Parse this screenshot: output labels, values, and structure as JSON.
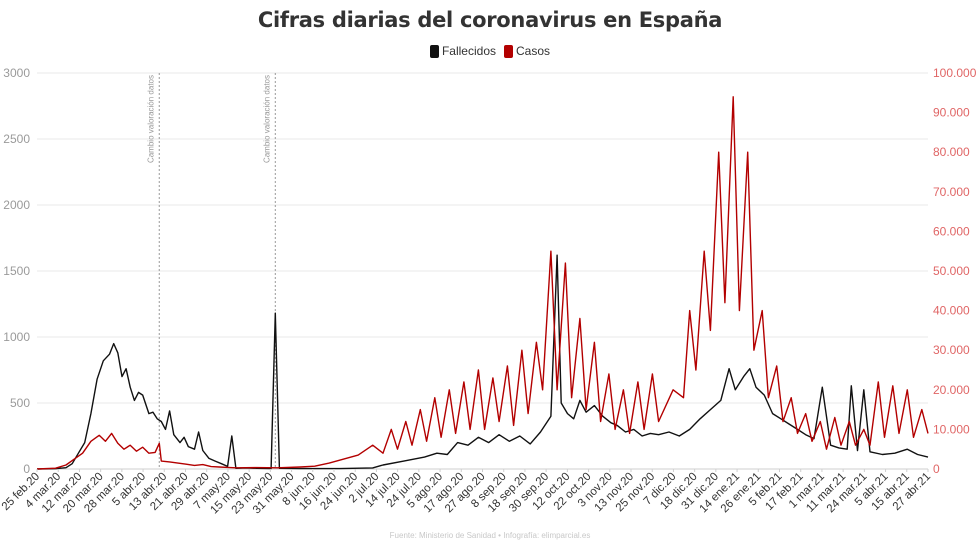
{
  "title": "Cifras diarias del coronavirus en España",
  "source": "Fuente: Ministerio de Sanidad • Infografía: elimparcial.es",
  "colors": {
    "fallecidos": "#111111",
    "casos": "#b30000",
    "grid": "#e8e8e8",
    "right_axis": "#e06666"
  },
  "chart_data": {
    "type": "line",
    "title": "Cifras diarias del coronavirus en España",
    "legend": [
      "Fallecidos",
      "Casos"
    ],
    "legend_placement": "top-center",
    "grid": true,
    "y_left": {
      "min": 0,
      "max": 3000,
      "ticks": [
        "0",
        "500",
        "1000",
        "1500",
        "2000",
        "2500",
        "3000"
      ]
    },
    "y_right": {
      "min": 0,
      "max": 100000,
      "ticks": [
        "0",
        "10.000",
        "20.000",
        "30.000",
        "40.000",
        "50.000",
        "60.000",
        "70.000",
        "80.000",
        "90.000",
        "100.000"
      ]
    },
    "x_labels": [
      "25 feb.20",
      "4 mar.20",
      "12 mar.20",
      "20 mar.20",
      "28 mar.20",
      "5 abr.20",
      "13 abr.20",
      "21 abr.20",
      "29 abr.20",
      "7 may.20",
      "15 may.20",
      "23 may.20",
      "31 may.20",
      "8 jun.20",
      "16 jun.20",
      "24 jun.20",
      "2 jul.20",
      "14 jul.20",
      "24 jul.20",
      "5 ago.20",
      "17 ago.20",
      "27 ago.20",
      "8 sep.20",
      "18 sep.20",
      "30 sep.20",
      "12 oct.20",
      "22 oct.20",
      "3 nov.20",
      "13 nov.20",
      "25 nov.20",
      "7 dic.20",
      "18 dic.20",
      "31 dic.20",
      "14 ene.21",
      "26 ene.21",
      "5 feb.21",
      "17 feb.21",
      "1 mar.21",
      "11 mar.21",
      "24 mar.21",
      "5 abr.21",
      "15 abr.21",
      "27 abr.21"
    ],
    "x_start": "2020-02-25",
    "x_end": "2021-04-30",
    "annotations": [
      {
        "date": "2020-04-24",
        "label": "Cambio valoración datos"
      },
      {
        "date": "2020-06-19",
        "label": "Cambio valoración datos"
      }
    ],
    "series": [
      {
        "name": "Fallecidos",
        "axis": "left",
        "points": [
          [
            "2020-02-25",
            0
          ],
          [
            "2020-03-05",
            2
          ],
          [
            "2020-03-10",
            10
          ],
          [
            "2020-03-13",
            40
          ],
          [
            "2020-03-16",
            120
          ],
          [
            "2020-03-19",
            200
          ],
          [
            "2020-03-22",
            420
          ],
          [
            "2020-03-25",
            680
          ],
          [
            "2020-03-28",
            820
          ],
          [
            "2020-03-31",
            870
          ],
          [
            "2020-04-02",
            950
          ],
          [
            "2020-04-04",
            880
          ],
          [
            "2020-04-06",
            700
          ],
          [
            "2020-04-08",
            760
          ],
          [
            "2020-04-10",
            620
          ],
          [
            "2020-04-12",
            520
          ],
          [
            "2020-04-14",
            580
          ],
          [
            "2020-04-16",
            560
          ],
          [
            "2020-04-19",
            420
          ],
          [
            "2020-04-21",
            430
          ],
          [
            "2020-04-23",
            380
          ],
          [
            "2020-04-25",
            360
          ],
          [
            "2020-04-27",
            300
          ],
          [
            "2020-04-29",
            440
          ],
          [
            "2020-05-01",
            260
          ],
          [
            "2020-05-04",
            200
          ],
          [
            "2020-05-06",
            240
          ],
          [
            "2020-05-08",
            170
          ],
          [
            "2020-05-11",
            150
          ],
          [
            "2020-05-13",
            280
          ],
          [
            "2020-05-15",
            140
          ],
          [
            "2020-05-18",
            80
          ],
          [
            "2020-05-21",
            60
          ],
          [
            "2020-05-24",
            40
          ],
          [
            "2020-05-27",
            20
          ],
          [
            "2020-05-29",
            250
          ],
          [
            "2020-05-31",
            5
          ],
          [
            "2020-06-05",
            8
          ],
          [
            "2020-06-10",
            5
          ],
          [
            "2020-06-17",
            3
          ],
          [
            "2020-06-19",
            1180
          ],
          [
            "2020-06-21",
            5
          ],
          [
            "2020-07-01",
            3
          ],
          [
            "2020-07-20",
            3
          ],
          [
            "2020-08-05",
            8
          ],
          [
            "2020-08-10",
            30
          ],
          [
            "2020-08-20",
            60
          ],
          [
            "2020-08-30",
            90
          ],
          [
            "2020-09-05",
            120
          ],
          [
            "2020-09-10",
            110
          ],
          [
            "2020-09-15",
            200
          ],
          [
            "2020-09-20",
            180
          ],
          [
            "2020-09-25",
            240
          ],
          [
            "2020-09-30",
            200
          ],
          [
            "2020-10-05",
            260
          ],
          [
            "2020-10-10",
            210
          ],
          [
            "2020-10-15",
            250
          ],
          [
            "2020-10-20",
            190
          ],
          [
            "2020-10-25",
            280
          ],
          [
            "2020-10-30",
            400
          ],
          [
            "2020-11-02",
            1620
          ],
          [
            "2020-11-04",
            500
          ],
          [
            "2020-11-07",
            420
          ],
          [
            "2020-11-10",
            380
          ],
          [
            "2020-11-13",
            520
          ],
          [
            "2020-11-16",
            430
          ],
          [
            "2020-11-20",
            480
          ],
          [
            "2020-11-24",
            400
          ],
          [
            "2020-11-28",
            350
          ],
          [
            "2020-12-01",
            330
          ],
          [
            "2020-12-05",
            280
          ],
          [
            "2020-12-09",
            300
          ],
          [
            "2020-12-13",
            250
          ],
          [
            "2020-12-17",
            270
          ],
          [
            "2020-12-21",
            260
          ],
          [
            "2020-12-26",
            280
          ],
          [
            "2020-12-31",
            250
          ],
          [
            "2021-01-05",
            300
          ],
          [
            "2021-01-10",
            380
          ],
          [
            "2021-01-15",
            450
          ],
          [
            "2021-01-20",
            520
          ],
          [
            "2021-01-24",
            760
          ],
          [
            "2021-01-27",
            600
          ],
          [
            "2021-01-31",
            700
          ],
          [
            "2021-02-03",
            760
          ],
          [
            "2021-02-06",
            620
          ],
          [
            "2021-02-10",
            560
          ],
          [
            "2021-02-14",
            420
          ],
          [
            "2021-02-18",
            380
          ],
          [
            "2021-02-22",
            340
          ],
          [
            "2021-02-26",
            300
          ],
          [
            "2021-03-02",
            260
          ],
          [
            "2021-03-06",
            230
          ],
          [
            "2021-03-10",
            620
          ],
          [
            "2021-03-14",
            180
          ],
          [
            "2021-03-18",
            160
          ],
          [
            "2021-03-22",
            150
          ],
          [
            "2021-03-24",
            630
          ],
          [
            "2021-03-27",
            140
          ],
          [
            "2021-03-30",
            600
          ],
          [
            "2021-04-02",
            130
          ],
          [
            "2021-04-08",
            110
          ],
          [
            "2021-04-14",
            120
          ],
          [
            "2021-04-20",
            150
          ],
          [
            "2021-04-25",
            110
          ],
          [
            "2021-04-30",
            90
          ]
        ]
      },
      {
        "name": "Casos",
        "axis": "right",
        "points": [
          [
            "2020-02-25",
            0
          ],
          [
            "2020-03-05",
            200
          ],
          [
            "2020-03-10",
            1000
          ],
          [
            "2020-03-14",
            2500
          ],
          [
            "2020-03-18",
            4000
          ],
          [
            "2020-03-22",
            7000
          ],
          [
            "2020-03-26",
            8500
          ],
          [
            "2020-03-29",
            7000
          ],
          [
            "2020-04-01",
            9000
          ],
          [
            "2020-04-04",
            6500
          ],
          [
            "2020-04-07",
            5000
          ],
          [
            "2020-04-10",
            6000
          ],
          [
            "2020-04-13",
            4500
          ],
          [
            "2020-04-16",
            5500
          ],
          [
            "2020-04-19",
            4000
          ],
          [
            "2020-04-22",
            4200
          ],
          [
            "2020-04-24",
            6500
          ],
          [
            "2020-04-25",
            2000
          ],
          [
            "2020-04-29",
            1800
          ],
          [
            "2020-05-03",
            1500
          ],
          [
            "2020-05-07",
            1200
          ],
          [
            "2020-05-11",
            900
          ],
          [
            "2020-05-15",
            1100
          ],
          [
            "2020-05-19",
            600
          ],
          [
            "2020-05-23",
            500
          ],
          [
            "2020-05-27",
            400
          ],
          [
            "2020-05-31",
            300
          ],
          [
            "2020-06-10",
            350
          ],
          [
            "2020-06-20",
            300
          ],
          [
            "2020-07-01",
            500
          ],
          [
            "2020-07-08",
            700
          ],
          [
            "2020-07-15",
            1500
          ],
          [
            "2020-07-22",
            2500
          ],
          [
            "2020-07-29",
            3500
          ],
          [
            "2020-08-05",
            6000
          ],
          [
            "2020-08-10",
            4000
          ],
          [
            "2020-08-14",
            10000
          ],
          [
            "2020-08-17",
            5000
          ],
          [
            "2020-08-21",
            12000
          ],
          [
            "2020-08-24",
            6000
          ],
          [
            "2020-08-28",
            15000
          ],
          [
            "2020-08-31",
            7000
          ],
          [
            "2020-09-04",
            18000
          ],
          [
            "2020-09-07",
            8000
          ],
          [
            "2020-09-11",
            20000
          ],
          [
            "2020-09-14",
            9000
          ],
          [
            "2020-09-18",
            22000
          ],
          [
            "2020-09-21",
            10000
          ],
          [
            "2020-09-25",
            25000
          ],
          [
            "2020-09-28",
            10000
          ],
          [
            "2020-10-02",
            23000
          ],
          [
            "2020-10-05",
            12000
          ],
          [
            "2020-10-09",
            26000
          ],
          [
            "2020-10-12",
            11000
          ],
          [
            "2020-10-16",
            30000
          ],
          [
            "2020-10-19",
            14000
          ],
          [
            "2020-10-23",
            32000
          ],
          [
            "2020-10-26",
            20000
          ],
          [
            "2020-10-30",
            55000
          ],
          [
            "2020-11-02",
            20000
          ],
          [
            "2020-11-06",
            52000
          ],
          [
            "2020-11-09",
            18000
          ],
          [
            "2020-11-13",
            38000
          ],
          [
            "2020-11-16",
            15000
          ],
          [
            "2020-11-20",
            32000
          ],
          [
            "2020-11-23",
            12000
          ],
          [
            "2020-11-27",
            24000
          ],
          [
            "2020-11-30",
            10000
          ],
          [
            "2020-12-04",
            20000
          ],
          [
            "2020-12-07",
            9000
          ],
          [
            "2020-12-11",
            22000
          ],
          [
            "2020-12-14",
            10000
          ],
          [
            "2020-12-18",
            24000
          ],
          [
            "2020-12-21",
            12000
          ],
          [
            "2020-12-28",
            20000
          ],
          [
            "2021-01-02",
            18000
          ],
          [
            "2021-01-05",
            40000
          ],
          [
            "2021-01-08",
            25000
          ],
          [
            "2021-01-12",
            55000
          ],
          [
            "2021-01-15",
            35000
          ],
          [
            "2021-01-19",
            80000
          ],
          [
            "2021-01-22",
            42000
          ],
          [
            "2021-01-26",
            94000
          ],
          [
            "2021-01-29",
            40000
          ],
          [
            "2021-02-02",
            80000
          ],
          [
            "2021-02-05",
            30000
          ],
          [
            "2021-02-09",
            40000
          ],
          [
            "2021-02-12",
            18000
          ],
          [
            "2021-02-16",
            26000
          ],
          [
            "2021-02-19",
            12000
          ],
          [
            "2021-02-23",
            18000
          ],
          [
            "2021-02-26",
            9000
          ],
          [
            "2021-03-02",
            14000
          ],
          [
            "2021-03-05",
            7000
          ],
          [
            "2021-03-09",
            12000
          ],
          [
            "2021-03-12",
            5000
          ],
          [
            "2021-03-16",
            13000
          ],
          [
            "2021-03-19",
            6000
          ],
          [
            "2021-03-23",
            12000
          ],
          [
            "2021-03-26",
            6000
          ],
          [
            "2021-03-30",
            10000
          ],
          [
            "2021-04-02",
            6000
          ],
          [
            "2021-04-06",
            22000
          ],
          [
            "2021-04-09",
            8000
          ],
          [
            "2021-04-13",
            21000
          ],
          [
            "2021-04-16",
            9000
          ],
          [
            "2021-04-20",
            20000
          ],
          [
            "2021-04-23",
            8000
          ],
          [
            "2021-04-27",
            15000
          ],
          [
            "2021-04-30",
            9000
          ]
        ]
      }
    ]
  }
}
